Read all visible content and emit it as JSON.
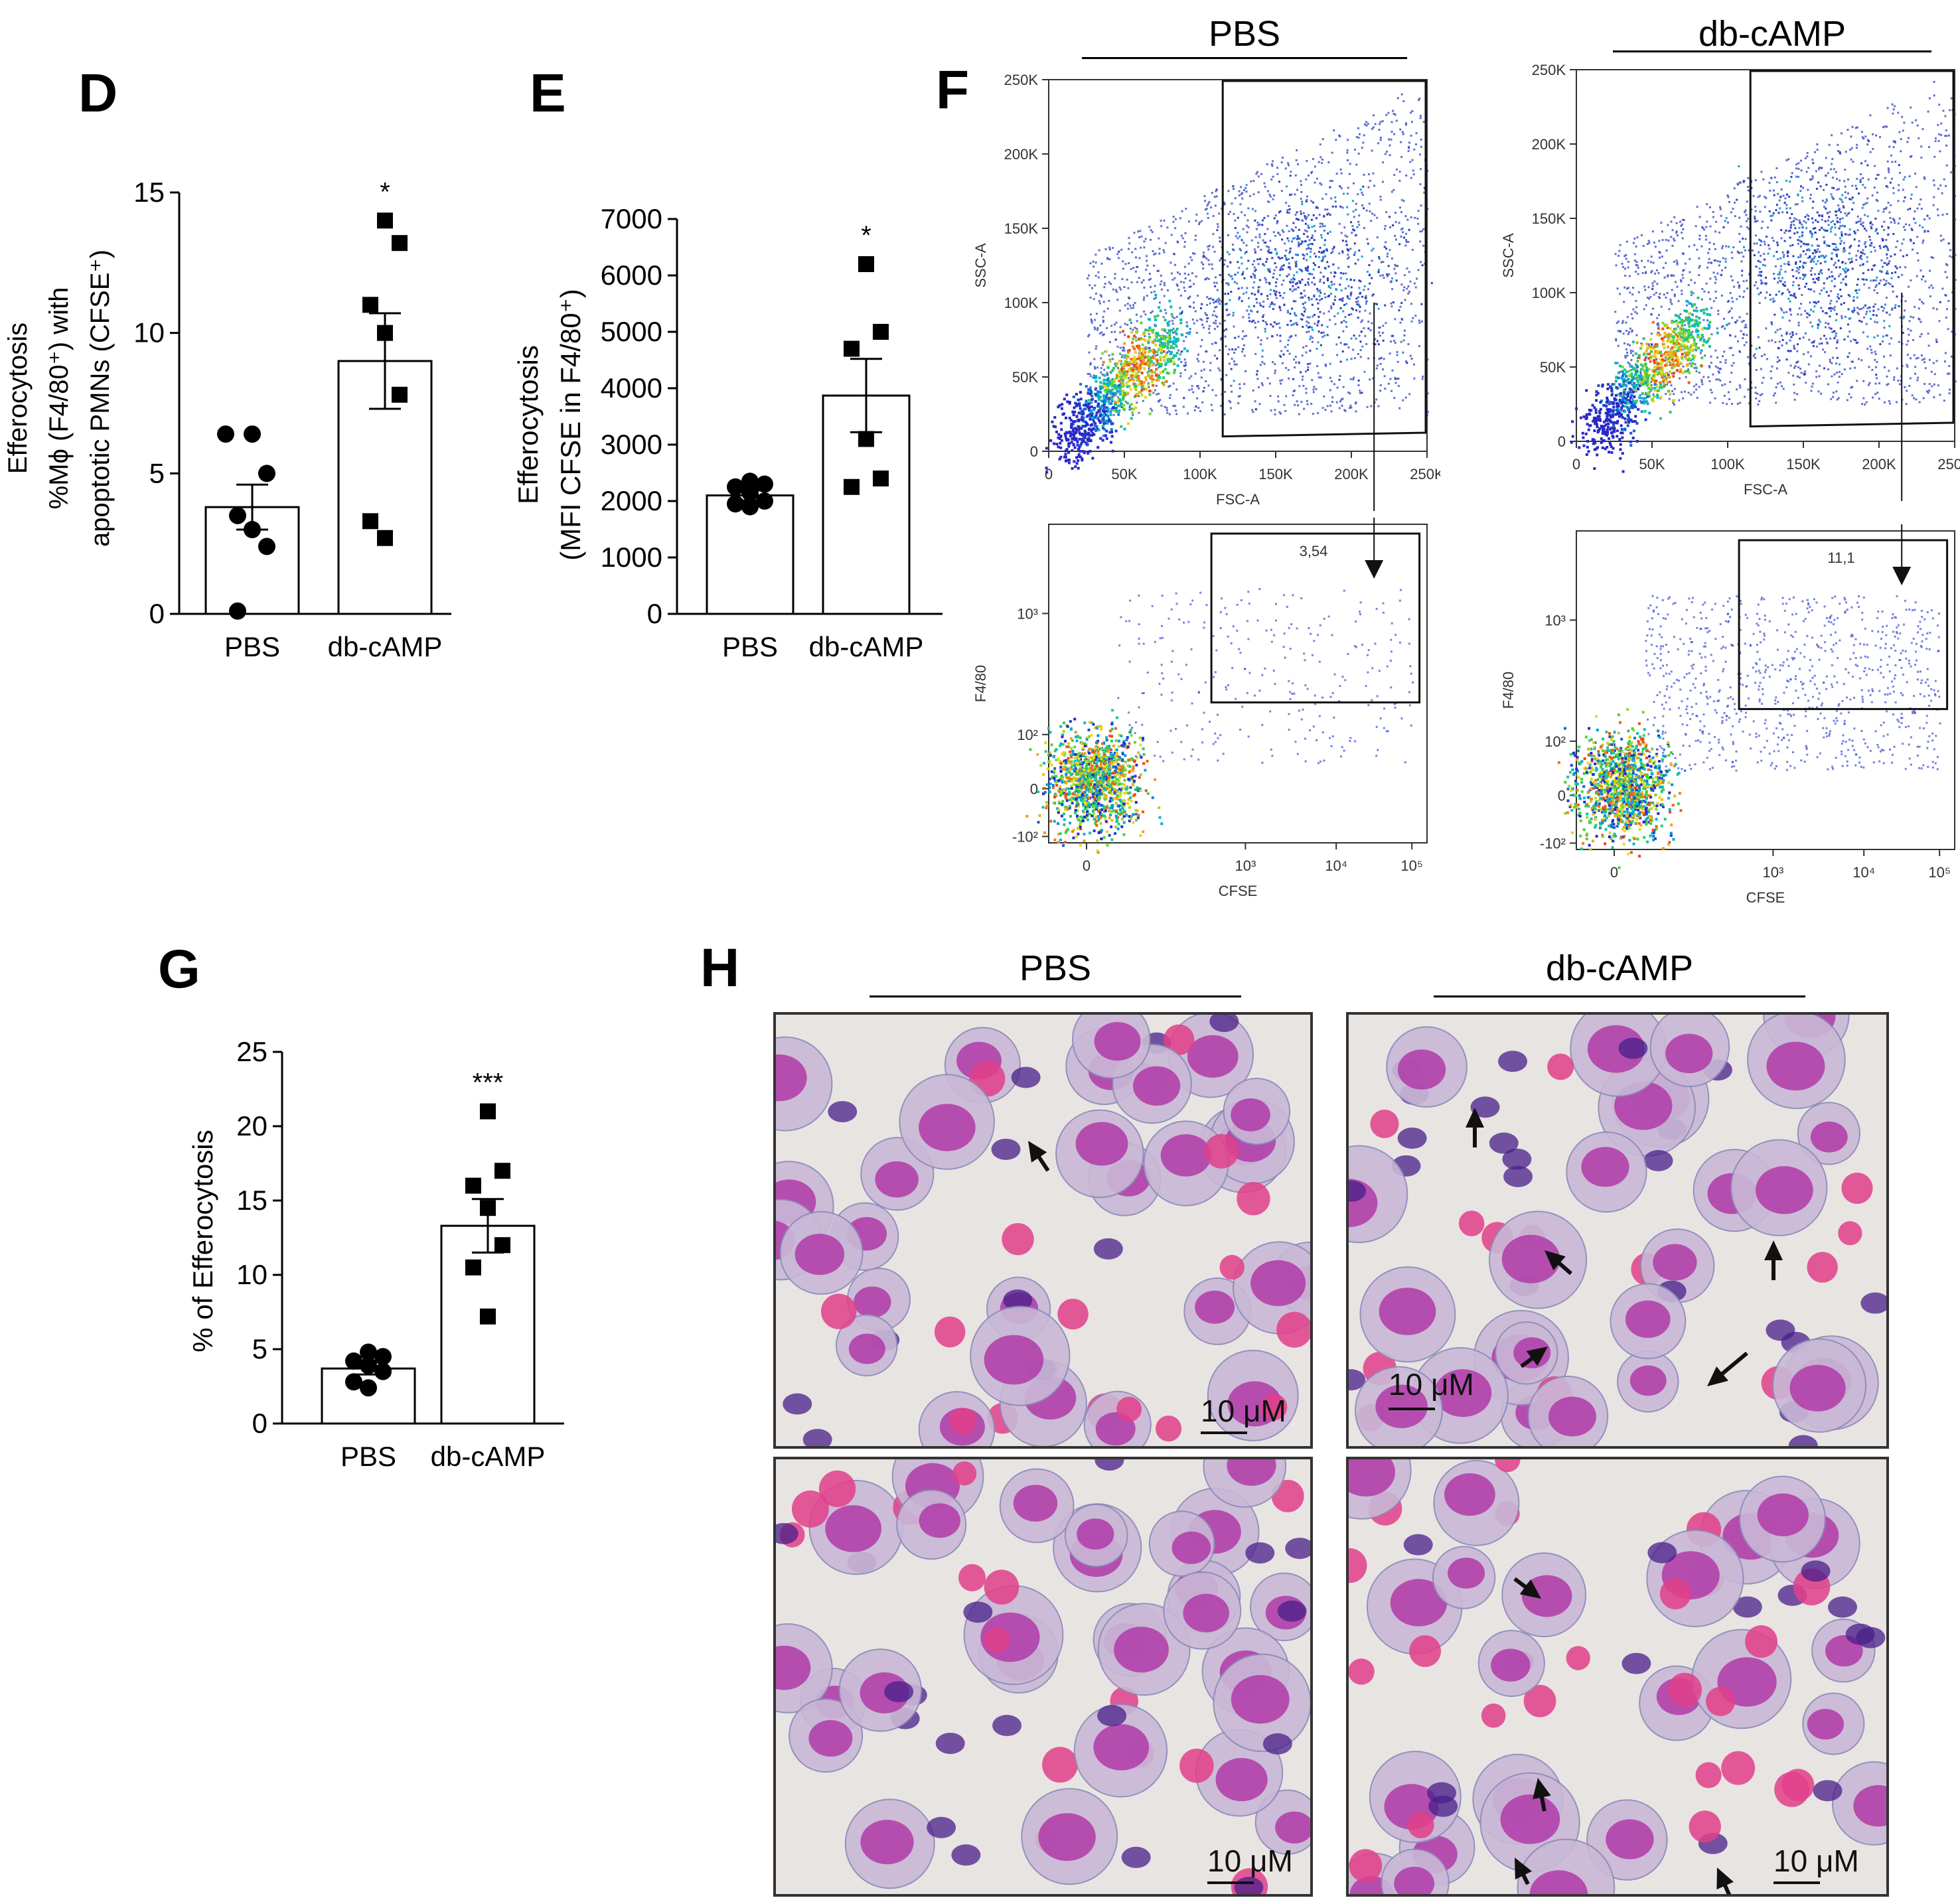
{
  "panels": {
    "D": {
      "label": "D"
    },
    "E": {
      "label": "E"
    },
    "F": {
      "label": "F"
    },
    "G": {
      "label": "G"
    },
    "H": {
      "label": "H"
    }
  },
  "chart_data": [
    {
      "id": "D",
      "type": "bar",
      "categories": [
        "PBS",
        "db-cAMP"
      ],
      "values": [
        3.8,
        9.0
      ],
      "errors": [
        0.8,
        1.7
      ],
      "points": [
        [
          6.4,
          6.4,
          5.0,
          3.5,
          3.0,
          2.4,
          0.1
        ],
        [
          14.0,
          13.2,
          11.0,
          10.0,
          7.8,
          3.3,
          2.7
        ]
      ],
      "markers": [
        "circle",
        "square"
      ],
      "significance": [
        "",
        "*"
      ],
      "ylabel_lines": [
        "Efferocytosis",
        "%Mϕ (F4/80⁺) with",
        "apoptotic PMNs (CFSE⁺)"
      ],
      "ylim": [
        0,
        15
      ],
      "yticks": [
        "0",
        "5",
        "10",
        "15"
      ]
    },
    {
      "id": "E",
      "type": "bar",
      "categories": [
        "PBS",
        "db-cAMP"
      ],
      "values": [
        2100,
        3870
      ],
      "errors": [
        90,
        650
      ],
      "points": [
        [
          2350,
          2300,
          2250,
          2150,
          2000,
          1950,
          1900
        ],
        [
          6200,
          5000,
          4700,
          3100,
          2400,
          2250
        ]
      ],
      "markers": [
        "circle",
        "square"
      ],
      "significance": [
        "",
        "*"
      ],
      "ylabel_lines": [
        "Efferocytosis",
        "(MFI CFSE in F4/80⁺)"
      ],
      "ylim": [
        0,
        7000
      ],
      "yticks": [
        "0",
        "1000",
        "2000",
        "3000",
        "4000",
        "5000",
        "6000",
        "7000"
      ]
    },
    {
      "id": "G",
      "type": "bar",
      "categories": [
        "PBS",
        "db-cAMP"
      ],
      "values": [
        3.7,
        13.3
      ],
      "errors": [
        0.4,
        1.8
      ],
      "points": [
        [
          4.8,
          4.5,
          4.2,
          3.9,
          3.5,
          2.8,
          2.4
        ],
        [
          21.0,
          17.0,
          16.0,
          14.5,
          12.0,
          10.5,
          7.2
        ]
      ],
      "markers": [
        "circle",
        "square"
      ],
      "significance": [
        "",
        "***"
      ],
      "ylabel_lines": [
        "% of Efferocytosis"
      ],
      "ylim": [
        0,
        25
      ],
      "yticks": [
        "0",
        "5",
        "10",
        "15",
        "20",
        "25"
      ]
    }
  ],
  "flow": {
    "headers": [
      "PBS",
      "db-cAMP"
    ],
    "top": {
      "xlabel": "FSC-A",
      "ylabel": "SSC-A",
      "xticks": [
        "0",
        "50K",
        "100K",
        "150K",
        "200K",
        "250K"
      ],
      "yticks": [
        "0",
        "50K",
        "100K",
        "150K",
        "200K",
        "250K"
      ]
    },
    "bottom": {
      "xlabel": "CFSE",
      "ylabel": "F4/80",
      "xticks": [
        "0",
        "10³",
        "10⁴",
        "10⁵"
      ],
      "yticks": [
        "-10²",
        "0",
        "10²",
        "10³"
      ],
      "gate_values": [
        "3,54",
        "11,1"
      ]
    }
  },
  "histology": {
    "headers": [
      "PBS",
      "db-cAMP"
    ],
    "scale_label": "10 μM"
  },
  "colors": {
    "cytoplasm": "#c9b8d6",
    "nucleus": "#b03aa8",
    "rbc": "#e0408a",
    "dark_nucleus": "#4a1f8a",
    "background": "#e8e4e2"
  }
}
